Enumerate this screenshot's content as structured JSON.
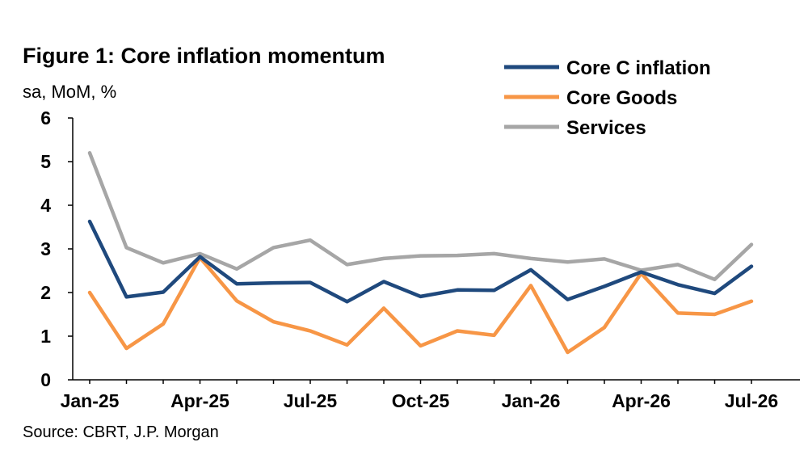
{
  "title": "Figure 1: Core inflation momentum",
  "subtitle": "sa, MoM, %",
  "source": "Source: CBRT, J.P. Morgan",
  "chart_data": {
    "type": "line",
    "x": [
      "Jan-25",
      "Feb-25",
      "Mar-25",
      "Apr-25",
      "May-25",
      "Jun-25",
      "Jul-25",
      "Aug-25",
      "Sep-25",
      "Oct-25",
      "Nov-25",
      "Dec-25",
      "Jan-26",
      "Feb-26",
      "Mar-26",
      "Apr-26",
      "May-26",
      "Jun-26",
      "Jul-26"
    ],
    "xtick_labels": [
      "Jan-25",
      "Apr-25",
      "Jul-25",
      "Oct-25",
      "Jan-26",
      "Apr-26",
      "Jul-26"
    ],
    "ylim": [
      0,
      6
    ],
    "yticks": [
      "0",
      "1",
      "2",
      "3",
      "4",
      "5",
      "6"
    ],
    "grid": false,
    "legend_position": "top-right",
    "series": [
      {
        "name": "Core C inflation",
        "color": "#1f497d",
        "values": [
          3.63,
          1.9,
          2.01,
          2.82,
          2.2,
          2.22,
          2.23,
          1.79,
          2.25,
          1.91,
          2.06,
          2.05,
          2.52,
          1.84,
          2.14,
          2.47,
          2.18,
          1.98,
          2.6
        ]
      },
      {
        "name": "Core Goods",
        "color": "#f79646",
        "values": [
          2.0,
          0.72,
          1.28,
          2.8,
          1.81,
          1.33,
          1.12,
          0.8,
          1.64,
          0.78,
          1.12,
          1.02,
          2.16,
          0.63,
          1.2,
          2.44,
          1.53,
          1.5,
          1.8
        ]
      },
      {
        "name": "Services",
        "color": "#a6a6a6",
        "values": [
          5.2,
          3.03,
          2.68,
          2.89,
          2.54,
          3.03,
          3.2,
          2.64,
          2.78,
          2.84,
          2.85,
          2.89,
          2.78,
          2.7,
          2.77,
          2.51,
          2.64,
          2.3,
          3.1
        ]
      }
    ]
  }
}
